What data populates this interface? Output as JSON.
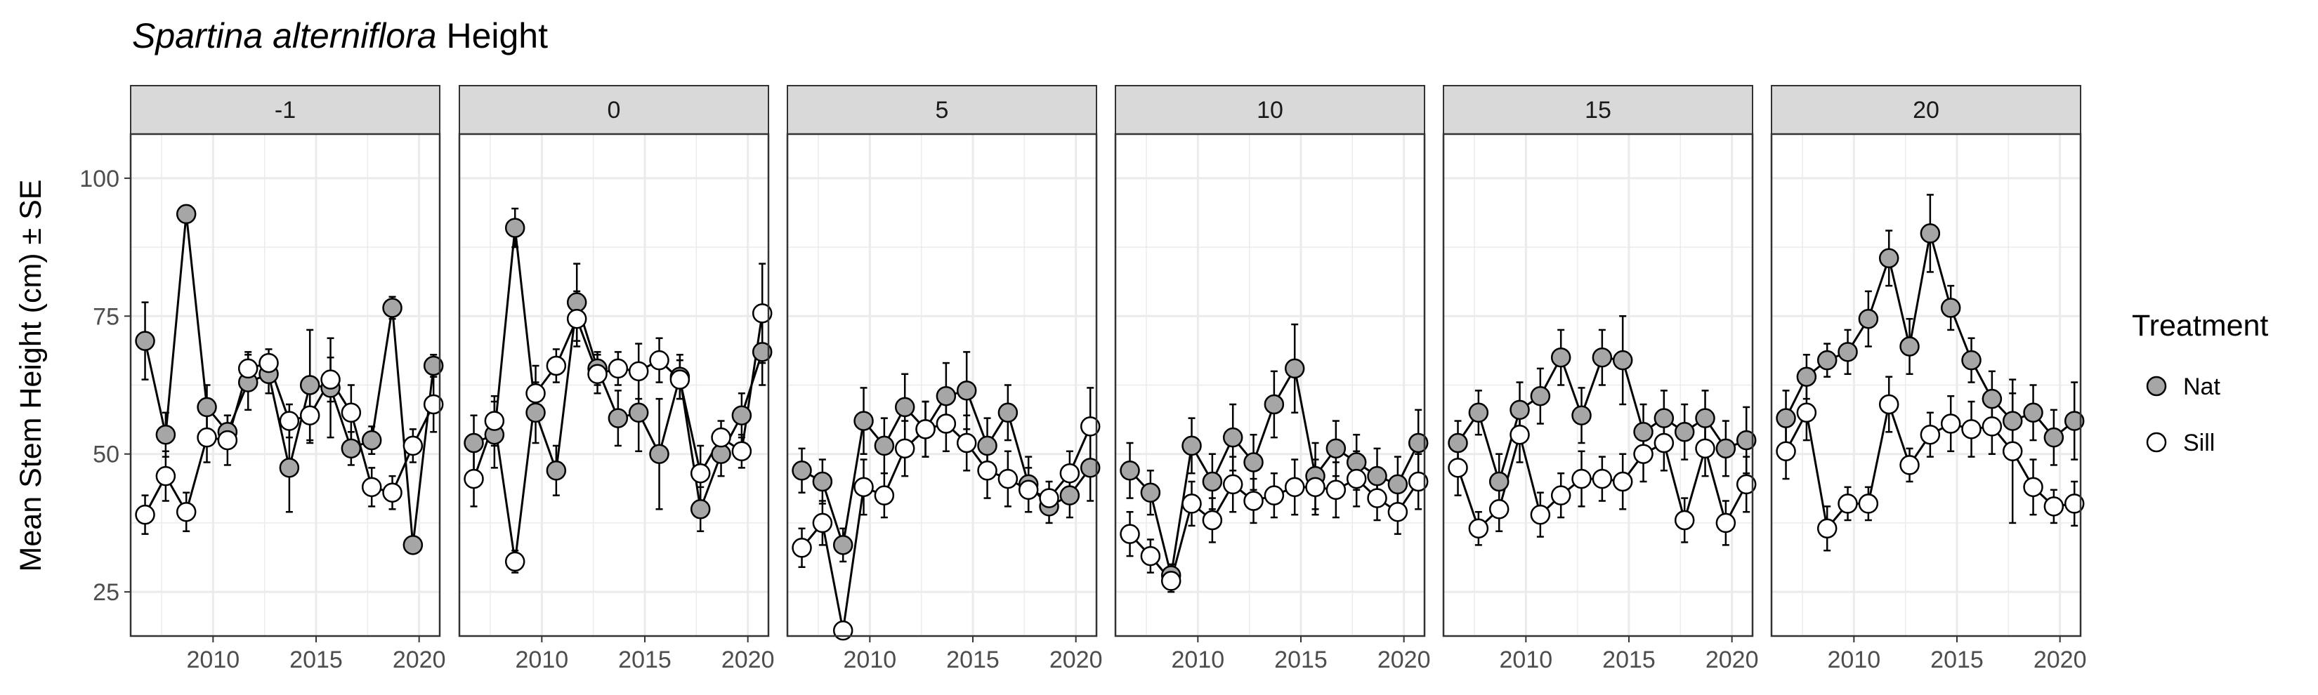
{
  "chart_data": {
    "type": "scatter",
    "title_italic": "Spartina alterniflora",
    "title_rest": " Height",
    "ylabel": "Mean Stem Height (cm) ± SE",
    "xlabel": "",
    "ylim": [
      17,
      108
    ],
    "xlim": [
      2006,
      2021
    ],
    "yticks": [
      25,
      50,
      75,
      100
    ],
    "xticks": [
      2010,
      2015,
      2020
    ],
    "grid": true,
    "legend": {
      "title": "Treatment",
      "placement": "right",
      "entries": [
        "Nat",
        "Sill"
      ]
    },
    "colors": {
      "Nat": "#a6a6a6",
      "Sill": "#ffffff",
      "strip": "#d9d9d9",
      "grid": "#ebebeb",
      "line": "#000000"
    },
    "panels": [
      {
        "label": "-1",
        "series": [
          {
            "name": "Nat",
            "x": [
              2006.7,
              2007.7,
              2008.7,
              2009.7,
              2010.7,
              2011.7,
              2012.7,
              2013.7,
              2014.7,
              2015.7,
              2016.7,
              2017.7,
              2018.7,
              2019.7,
              2020.7
            ],
            "y": [
              70.5,
              53.5,
              93.5,
              58.5,
              54,
              63,
              64.5,
              47.5,
              62.5,
              62,
              51,
              52.5,
              76.5,
              33.5,
              66
            ],
            "err": [
              7,
              4,
              1.5,
              4,
              3,
              5,
              3.5,
              8,
              10,
              9,
              3,
              2.5,
              2,
              1.5,
              2
            ]
          },
          {
            "name": "Sill",
            "x": [
              2006.7,
              2007.7,
              2008.7,
              2009.7,
              2010.7,
              2011.7,
              2012.7,
              2013.7,
              2014.7,
              2015.7,
              2016.7,
              2017.7,
              2018.7,
              2019.7,
              2020.7
            ],
            "y": [
              39,
              46,
              39.5,
              53,
              52.5,
              65.5,
              66.5,
              56,
              57,
              63.5,
              57.5,
              44,
              43,
              51.5,
              59
            ],
            "err": [
              3.5,
              4.5,
              3.5,
              4.5,
              4.5,
              3,
              2.5,
              3,
              5,
              4,
              5,
              3.5,
              3,
              3,
              5
            ]
          }
        ]
      },
      {
        "label": "0",
        "series": [
          {
            "name": "Nat",
            "x": [
              2006.7,
              2007.7,
              2008.7,
              2009.7,
              2010.7,
              2011.7,
              2012.7,
              2013.7,
              2014.7,
              2015.7,
              2016.7,
              2017.7,
              2018.7,
              2019.7,
              2020.7
            ],
            "y": [
              52,
              53.5,
              91,
              57.5,
              47,
              77.5,
              65.5,
              56.5,
              57.5,
              50,
              64,
              40,
              50,
              57,
              68.5
            ],
            "err": [
              5,
              6,
              3.5,
              5.5,
              4.5,
              7,
              3,
              5,
              7,
              10,
              4,
              4,
              4,
              4,
              6
            ]
          },
          {
            "name": "Sill",
            "x": [
              2006.7,
              2007.7,
              2008.7,
              2009.7,
              2010.7,
              2011.7,
              2012.7,
              2013.7,
              2014.7,
              2015.7,
              2016.7,
              2017.7,
              2018.7,
              2019.7,
              2020.7
            ],
            "y": [
              45.5,
              56,
              30.5,
              61,
              66,
              74.5,
              64.5,
              65.5,
              65,
              67,
              63.5,
              46.5,
              53,
              50.5,
              75.5
            ],
            "err": [
              5,
              4.5,
              2,
              5,
              3,
              5,
              3.5,
              3,
              5,
              4,
              3.5,
              5,
              3,
              3,
              9
            ]
          }
        ]
      },
      {
        "label": "5",
        "series": [
          {
            "name": "Nat",
            "x": [
              2006.7,
              2007.7,
              2008.7,
              2009.7,
              2010.7,
              2011.7,
              2012.7,
              2013.7,
              2014.7,
              2015.7,
              2016.7,
              2017.7,
              2018.7,
              2019.7,
              2020.7
            ],
            "y": [
              47,
              45,
              33.5,
              56,
              51.5,
              58.5,
              54.5,
              60.5,
              61.5,
              51.5,
              57.5,
              44.5,
              40.5,
              42.5,
              47.5
            ],
            "err": [
              4,
              4,
              3,
              6,
              5,
              6,
              5,
              6,
              7,
              5,
              5,
              5,
              3,
              4,
              6
            ]
          },
          {
            "name": "Sill",
            "x": [
              2006.7,
              2007.7,
              2008.7,
              2009.7,
              2010.7,
              2011.7,
              2012.7,
              2013.7,
              2014.7,
              2015.7,
              2016.7,
              2017.7,
              2018.7,
              2019.7,
              2020.7
            ],
            "y": [
              33,
              37.5,
              18,
              44,
              42.5,
              51,
              54.5,
              55.5,
              52,
              47,
              45.5,
              43.5,
              42,
              46.5,
              55
            ],
            "err": [
              3.5,
              4,
              1,
              5,
              4,
              5,
              5,
              5,
              5,
              5,
              5,
              4,
              3,
              4,
              7
            ]
          }
        ]
      },
      {
        "label": "10",
        "series": [
          {
            "name": "Nat",
            "x": [
              2006.7,
              2007.7,
              2008.7,
              2009.7,
              2010.7,
              2011.7,
              2012.7,
              2013.7,
              2014.7,
              2015.7,
              2016.7,
              2017.7,
              2018.7,
              2019.7,
              2020.7
            ],
            "y": [
              47,
              43,
              28,
              51.5,
              45,
              53,
              48.5,
              59,
              65.5,
              46,
              51,
              48.5,
              46,
              44.5,
              52
            ],
            "err": [
              5,
              4,
              2,
              5,
              5,
              6,
              5,
              6,
              8,
              6,
              5,
              5,
              5,
              5,
              6
            ]
          },
          {
            "name": "Sill",
            "x": [
              2006.7,
              2007.7,
              2008.7,
              2009.7,
              2010.7,
              2011.7,
              2012.7,
              2013.7,
              2014.7,
              2015.7,
              2016.7,
              2017.7,
              2018.7,
              2019.7,
              2020.7
            ],
            "y": [
              35.5,
              31.5,
              27,
              41,
              38,
              44.5,
              41.5,
              42.5,
              44,
              44,
              43.5,
              45.5,
              42,
              39.5,
              45
            ],
            "err": [
              4,
              3,
              2,
              4,
              4,
              5,
              4,
              4,
              5,
              5,
              5,
              5,
              4,
              4,
              5
            ]
          }
        ]
      },
      {
        "label": "15",
        "series": [
          {
            "name": "Nat",
            "x": [
              2006.7,
              2007.7,
              2008.7,
              2009.7,
              2010.7,
              2011.7,
              2012.7,
              2013.7,
              2014.7,
              2015.7,
              2016.7,
              2017.7,
              2018.7,
              2019.7,
              2020.7
            ],
            "y": [
              52,
              57.5,
              45,
              58,
              60.5,
              67.5,
              57,
              67.5,
              67,
              54,
              56.5,
              54,
              56.5,
              51,
              52.5
            ],
            "err": [
              4,
              4,
              5,
              5,
              5,
              5,
              5,
              5,
              8,
              5,
              5,
              5,
              5,
              5,
              6
            ]
          },
          {
            "name": "Sill",
            "x": [
              2006.7,
              2007.7,
              2008.7,
              2009.7,
              2010.7,
              2011.7,
              2012.7,
              2013.7,
              2014.7,
              2015.7,
              2016.7,
              2017.7,
              2018.7,
              2019.7,
              2020.7
            ],
            "y": [
              47.5,
              36.5,
              40,
              53.5,
              39,
              42.5,
              45.5,
              45.5,
              45,
              50,
              52,
              38,
              51,
              37.5,
              44.5
            ],
            "err": [
              5,
              3,
              4,
              5,
              4,
              4,
              5,
              4,
              5,
              5,
              5,
              4,
              5,
              4,
              5
            ]
          }
        ]
      },
      {
        "label": "20",
        "series": [
          {
            "name": "Nat",
            "x": [
              2006.7,
              2007.7,
              2008.7,
              2009.7,
              2010.7,
              2011.7,
              2012.7,
              2013.7,
              2014.7,
              2015.7,
              2016.7,
              2017.7,
              2018.7,
              2019.7,
              2020.7
            ],
            "y": [
              56.5,
              64,
              67,
              68.5,
              74.5,
              85.5,
              69.5,
              90,
              76.5,
              67,
              60,
              56,
              57.5,
              53,
              56
            ],
            "err": [
              5,
              4,
              3,
              4,
              5,
              5,
              5,
              7,
              4,
              4,
              5,
              5,
              5,
              5,
              7
            ]
          },
          {
            "name": "Sill",
            "x": [
              2006.7,
              2007.7,
              2008.7,
              2009.7,
              2010.7,
              2011.7,
              2012.7,
              2013.7,
              2014.7,
              2015.7,
              2016.7,
              2017.7,
              2018.7,
              2019.7,
              2020.7
            ],
            "y": [
              50.5,
              57.5,
              36.5,
              41,
              41,
              59,
              48,
              53.5,
              55.5,
              54.5,
              55,
              50.5,
              44,
              40.5,
              41
            ],
            "err": [
              5,
              5,
              4,
              3,
              3,
              5,
              3,
              4,
              5,
              5,
              5,
              13,
              5,
              3,
              4
            ]
          }
        ]
      }
    ]
  }
}
